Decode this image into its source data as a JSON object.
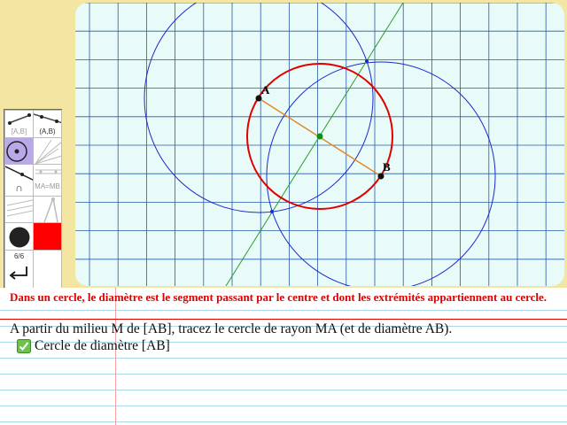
{
  "geometry": {
    "points": [
      {
        "label": "A"
      },
      {
        "label": "B"
      }
    ],
    "colors": {
      "grid_bg": "#e8fbf8",
      "grid_line": "#2a5aa6",
      "segment": "#e08a2a",
      "circle_main": "#e00000",
      "circle_aux": "#1a2ad0",
      "bisector": "#2aa02a",
      "midpoint": "#109010"
    }
  },
  "toolbar": {
    "segment_label": "[A,B]",
    "line_label": "(A,B)",
    "intersection_label": "∩",
    "equidistant_label": "MA=MB",
    "page_counter": "6/6",
    "undo_icon": "return-arrow-icon",
    "fill_color": "#ff0000",
    "point_color": "#222222",
    "circle_tool_bg": "#b9a9e8"
  },
  "statement": {
    "rule": "Dans un cercle, le diamètre est le segment passant par le centre et dont les extrémités appartiennent au cercle.",
    "instruction": "A partir du milieu M de [AB], tracez le cercle de rayon MA (et de diamètre AB).",
    "task_label": "Cercle de diamètre [AB]",
    "task_status": "done"
  }
}
